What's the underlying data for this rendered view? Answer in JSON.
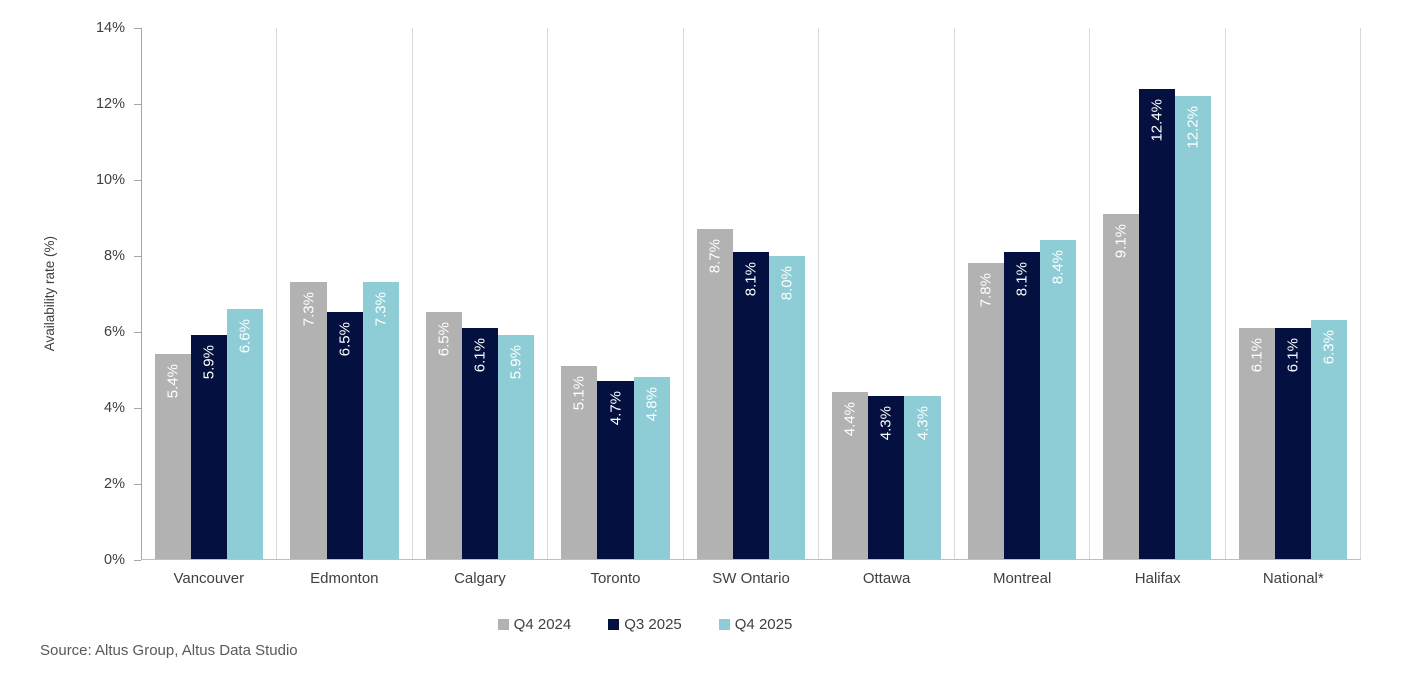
{
  "chart_data": {
    "type": "bar",
    "categories": [
      "Vancouver",
      "Edmonton",
      "Calgary",
      "Toronto",
      "SW Ontario",
      "Ottawa",
      "Montreal",
      "Halifax",
      "National*"
    ],
    "series": [
      {
        "name": "Q4 2024",
        "color": "#b2b2b2",
        "values": [
          5.4,
          7.3,
          6.5,
          5.1,
          8.7,
          4.4,
          7.8,
          9.1,
          6.1
        ]
      },
      {
        "name": "Q3 2025",
        "color": "#041140",
        "values": [
          5.9,
          6.5,
          6.1,
          4.7,
          8.1,
          4.3,
          8.1,
          12.4,
          6.1
        ]
      },
      {
        "name": "Q4 2025",
        "color": "#8ecdd5",
        "values": [
          6.6,
          7.3,
          5.9,
          4.8,
          8.0,
          4.3,
          8.4,
          12.2,
          6.3
        ]
      }
    ],
    "title": "",
    "xlabel": "",
    "ylabel": "Availability rate (%)",
    "ylim": [
      0,
      14
    ],
    "ytick_step": 2,
    "ytick_suffix": "%",
    "value_label_decimals": 1,
    "value_label_suffix": "%",
    "value_label_color": "#ffffff",
    "grid": "vertical-category-separators",
    "legend_position": "bottom"
  },
  "source": {
    "text": "Source: Altus Group, Altus Data Studio"
  },
  "colors": {
    "axis_line": "#a6a6a6",
    "baseline": "#bfbfbf",
    "separator": "#d9d9d9",
    "text": "#404040",
    "source_text": "#595959",
    "background": "#ffffff"
  }
}
